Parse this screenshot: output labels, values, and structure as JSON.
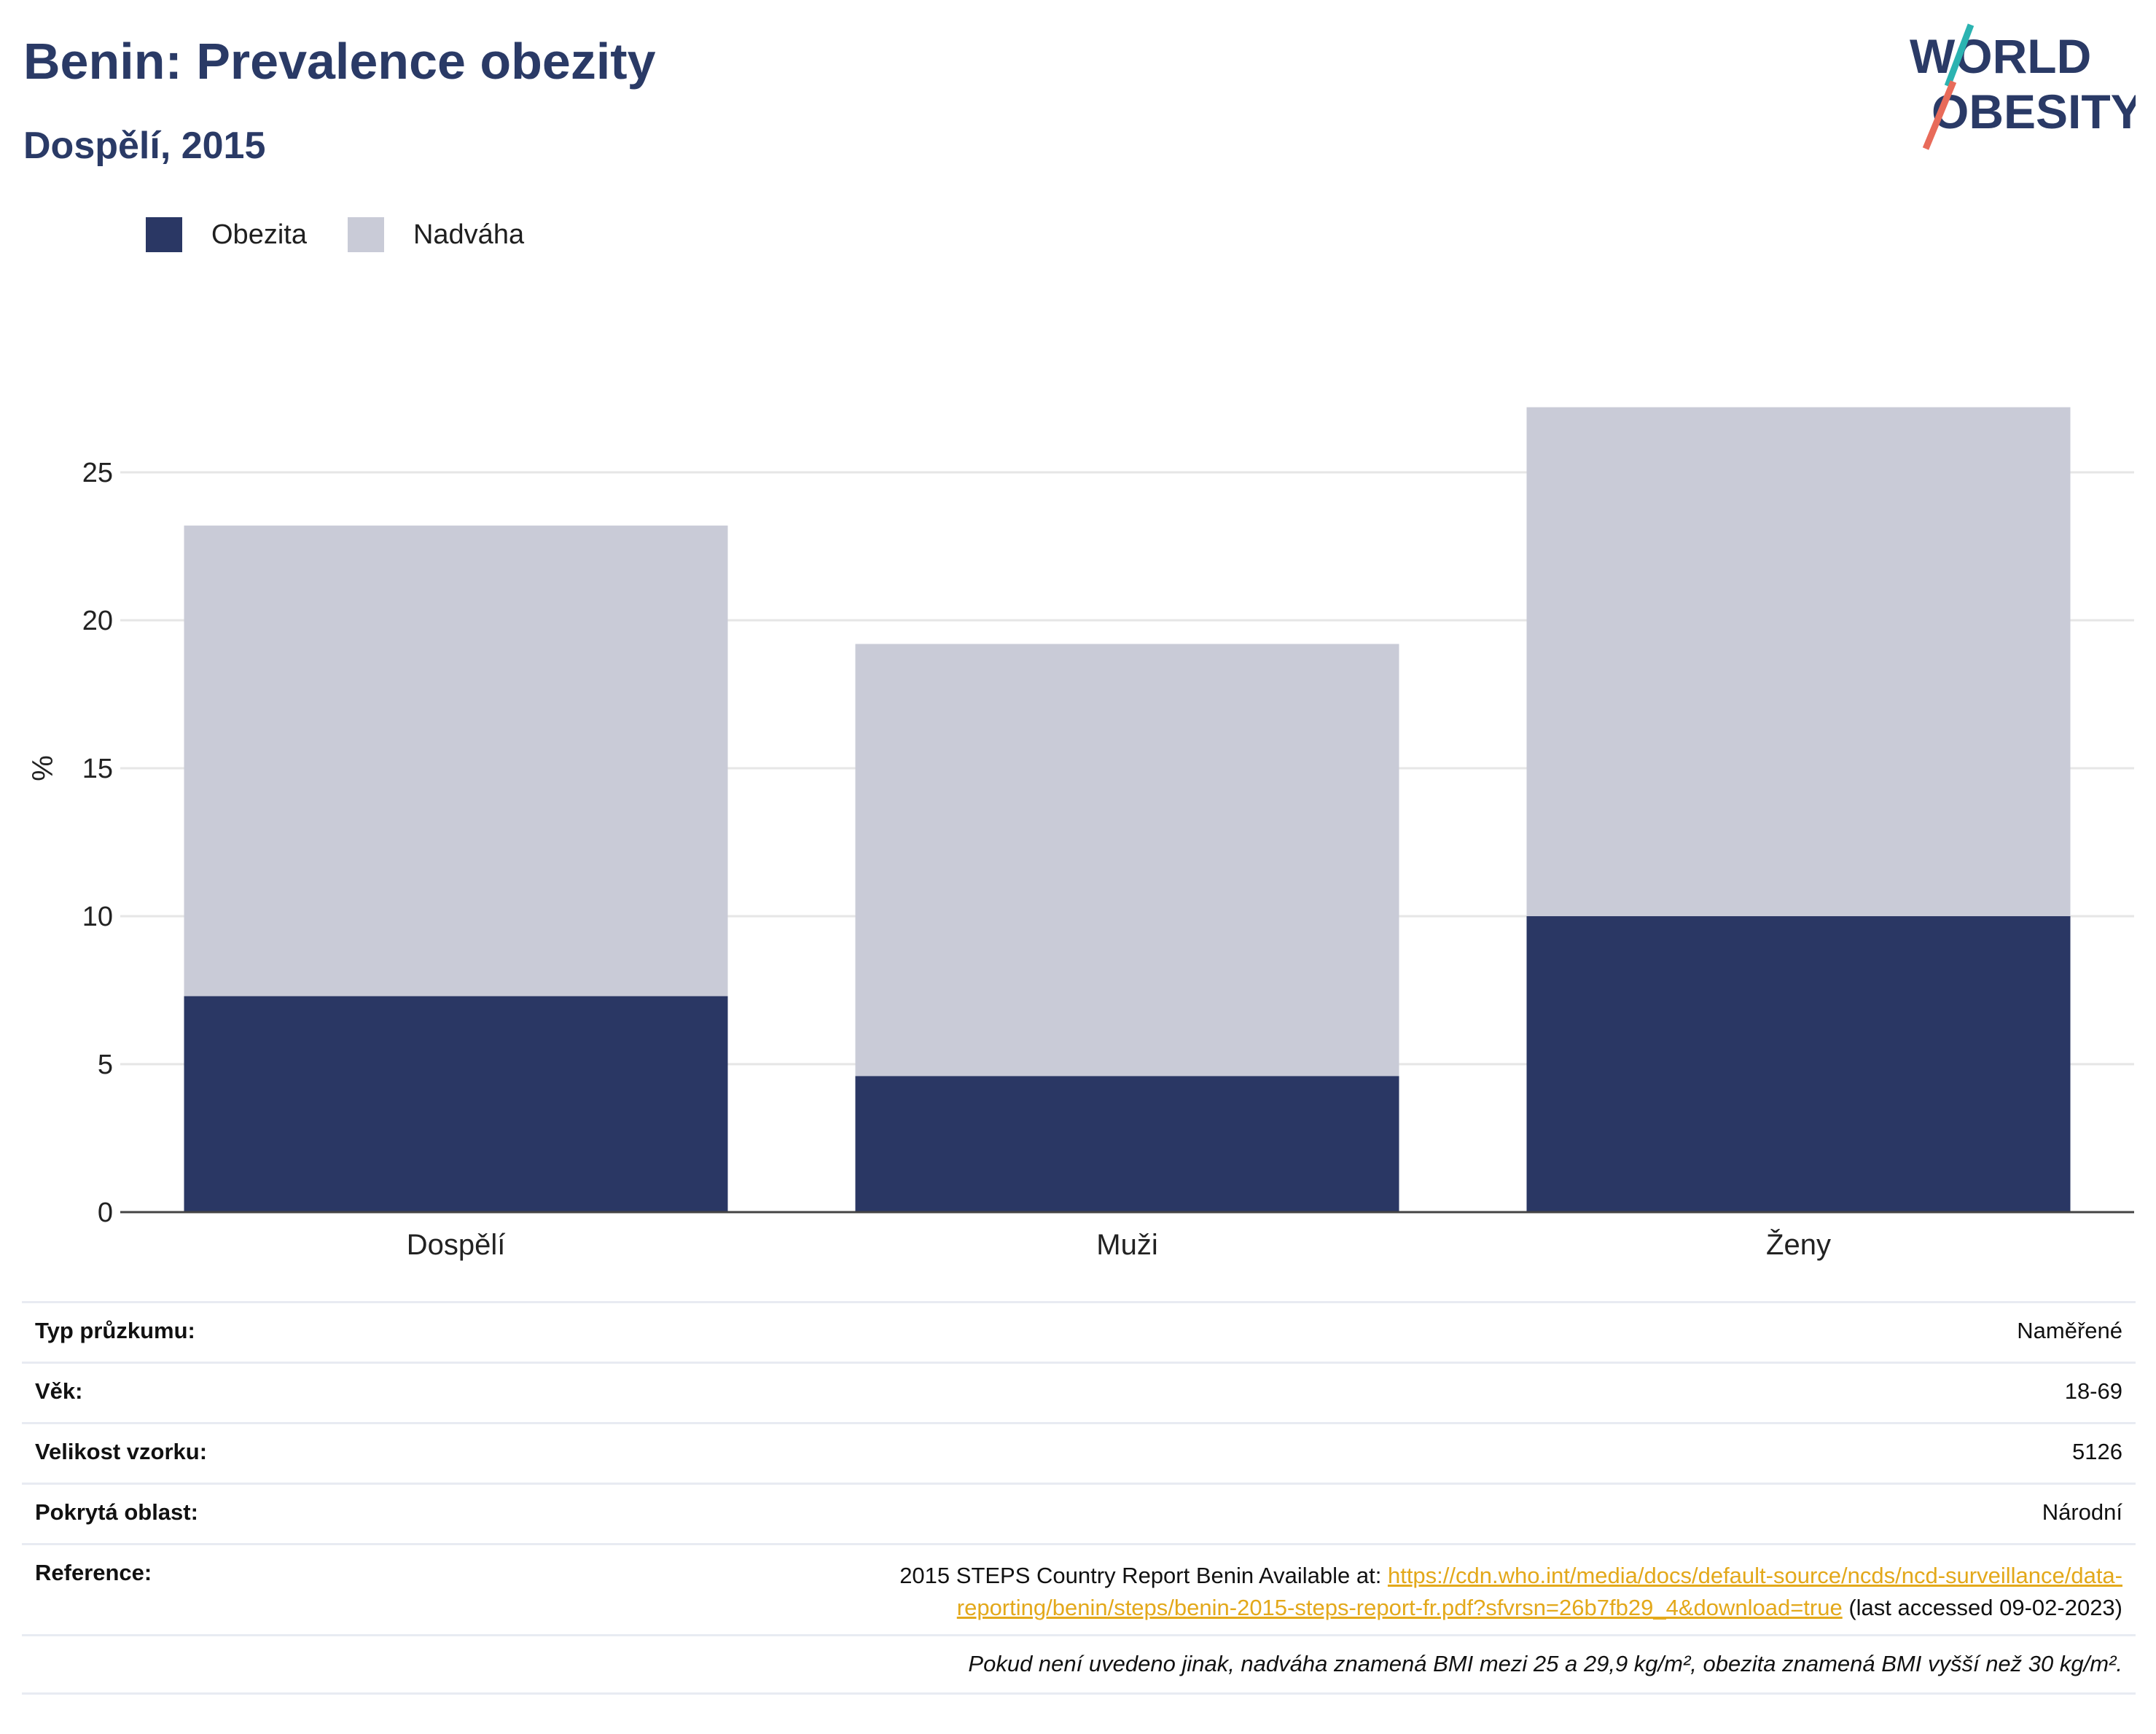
{
  "header": {
    "title": "Benin: Prevalence obezity",
    "subtitle": "Dospělí, 2015"
  },
  "logo": {
    "line1": "WORLD",
    "line2": "OBESITY",
    "colors": {
      "text": "#2a3a66",
      "teal": "#2bb3b1",
      "coral": "#e86b5a"
    }
  },
  "colors": {
    "obesity": "#2a3764",
    "overweight": "#c9cbd7",
    "axis": "#444444",
    "grid": "#e6e6e6"
  },
  "chart_data": {
    "type": "bar",
    "stacked": true,
    "categories": [
      "Dospělí",
      "Muži",
      "Ženy"
    ],
    "series": [
      {
        "name": "Obezita",
        "values": [
          7.3,
          4.6,
          10.0
        ]
      },
      {
        "name": "Nadváha",
        "values": [
          15.9,
          14.6,
          17.2
        ]
      }
    ],
    "ylabel": "%",
    "ylim": [
      0,
      30
    ],
    "yticks": [
      0,
      5,
      10,
      15,
      20,
      25
    ],
    "grid": true,
    "legend_position": "top-left"
  },
  "info": {
    "survey_type_label": "Typ průzkumu:",
    "survey_type_value": "Naměřené",
    "age_label": "Věk:",
    "age_value": "18-69",
    "sample_label": "Velikost vzorku:",
    "sample_value": "5126",
    "area_label": "Pokrytá oblast:",
    "area_value": "Národní",
    "reference_label": "Reference:",
    "reference_prefix": "2015 STEPS Country Report Benin Available at: ",
    "reference_link_1": "https://cdn.who.int/media/docs/default-source/ncds/ncd-surveillance/data-",
    "reference_link_2": "reporting/benin/steps/benin-2015-steps-report-fr.pdf?sfvrsn=26b7fb29_4&download=true",
    "reference_suffix": " (last accessed 09-02-2023)",
    "note": "Pokud není uvedeno jinak, nadváha znamená BMI mezi 25 a 29,9 kg/m², obezita znamená BMI vyšší než 30 kg/m²."
  }
}
